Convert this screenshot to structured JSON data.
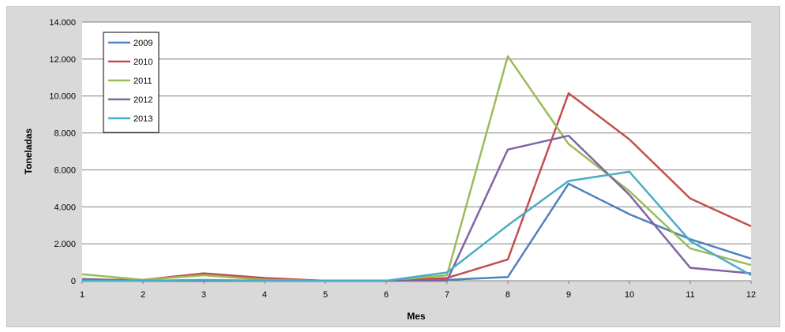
{
  "chart_data": {
    "type": "line",
    "title": "",
    "xlabel": "Mes",
    "ylabel": "Toneladas",
    "x": [
      1,
      2,
      3,
      4,
      5,
      6,
      7,
      8,
      9,
      10,
      11,
      12
    ],
    "ylim": [
      0,
      14000
    ],
    "yticks": [
      {
        "value": 0,
        "label": "0"
      },
      {
        "value": 2000,
        "label": "2.000"
      },
      {
        "value": 4000,
        "label": "4.000"
      },
      {
        "value": 6000,
        "label": "6.000"
      },
      {
        "value": 8000,
        "label": "8.000"
      },
      {
        "value": 10000,
        "label": "10.000"
      },
      {
        "value": 12000,
        "label": "12.000"
      },
      {
        "value": 14000,
        "label": "14.000"
      }
    ],
    "xticks": [
      "1",
      "2",
      "3",
      "4",
      "5",
      "6",
      "7",
      "8",
      "9",
      "10",
      "11",
      "12"
    ],
    "grid": true,
    "legend_position": "top-left",
    "series": [
      {
        "name": "2009",
        "color": "#4f81bd",
        "values": [
          100,
          0,
          0,
          0,
          0,
          0,
          50,
          200,
          5250,
          3600,
          2250,
          1200
        ]
      },
      {
        "name": "2010",
        "color": "#c0504d",
        "values": [
          50,
          50,
          400,
          150,
          0,
          0,
          150,
          1150,
          10150,
          7650,
          4450,
          2950
        ]
      },
      {
        "name": "2011",
        "color": "#9bbb59",
        "values": [
          350,
          50,
          300,
          50,
          0,
          0,
          300,
          12150,
          7400,
          4850,
          1750,
          850
        ]
      },
      {
        "name": "2012",
        "color": "#8064a2",
        "values": [
          0,
          0,
          0,
          0,
          0,
          0,
          0,
          7100,
          7850,
          4650,
          700,
          400
        ]
      },
      {
        "name": "2013",
        "color": "#4bacc6",
        "values": [
          0,
          0,
          50,
          0,
          0,
          0,
          450,
          3000,
          5400,
          5900,
          2150,
          300
        ]
      }
    ]
  }
}
